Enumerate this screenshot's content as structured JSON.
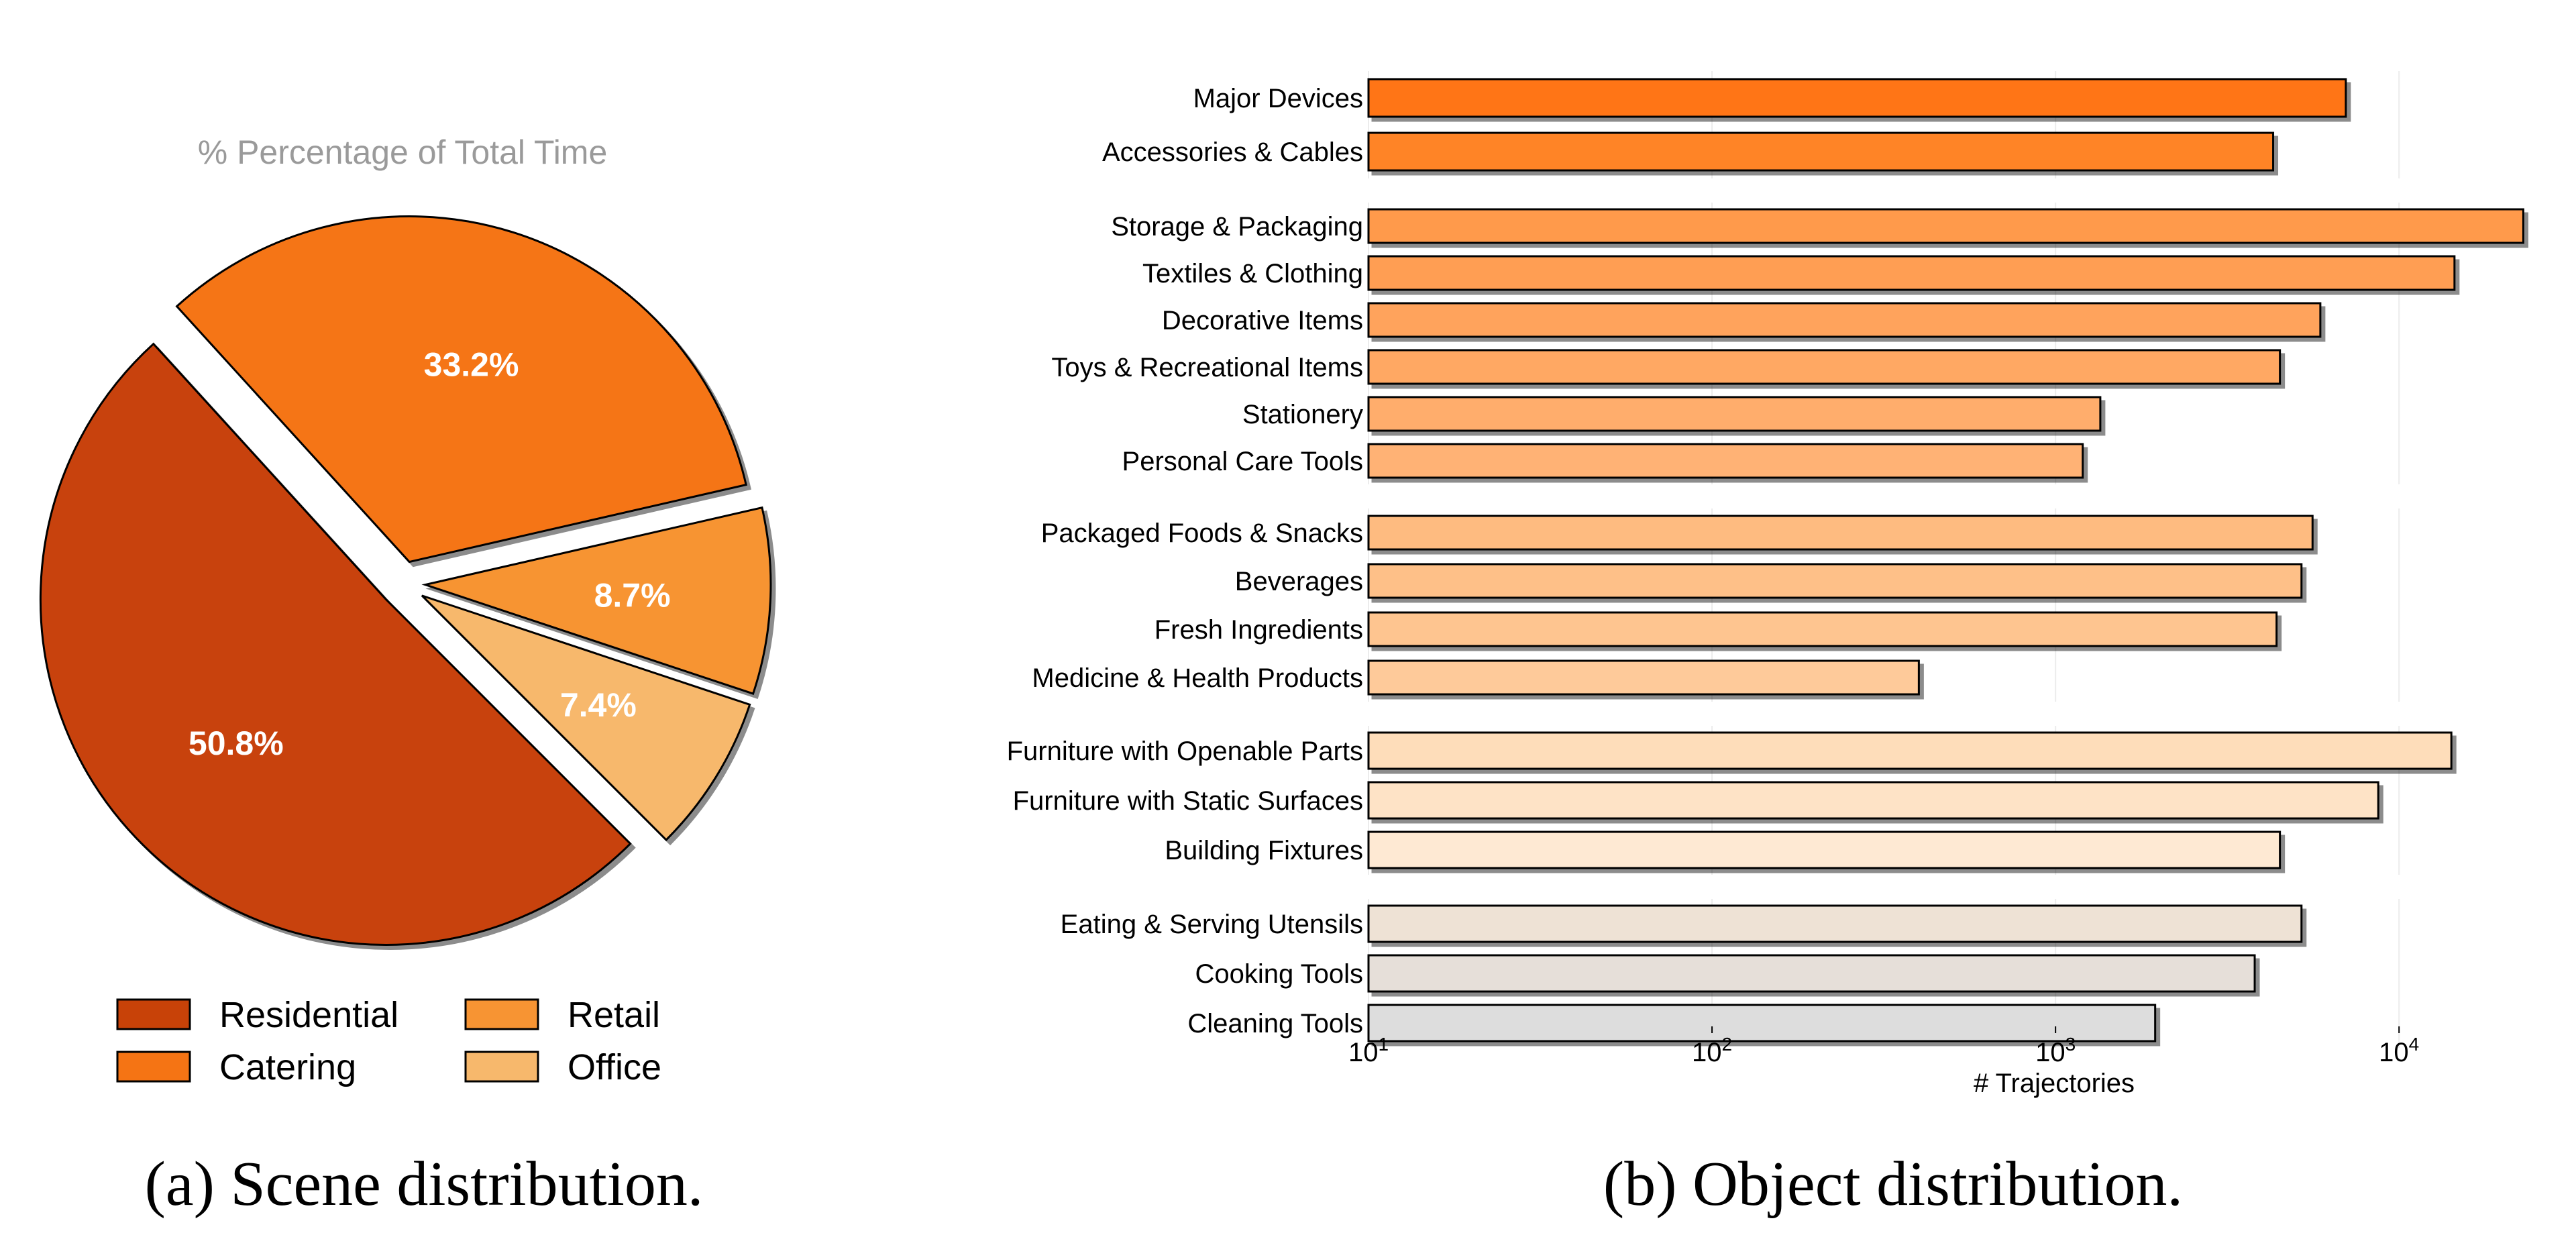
{
  "chart_data": [
    {
      "type": "pie",
      "title": "% Percentage of Total Time",
      "caption": "(a) Scene distribution.",
      "slices": [
        {
          "label": "Residential",
          "value": 50.8,
          "display": "50.8%",
          "color": "#C84208"
        },
        {
          "label": "Catering",
          "value": 33.2,
          "display": "33.2%",
          "color": "#F57414"
        },
        {
          "label": "Retail",
          "value": 8.7,
          "display": "8.7%",
          "color": "#F79433"
        },
        {
          "label": "Office",
          "value": 7.4,
          "display": "7.4%",
          "color": "#F7B86C"
        }
      ],
      "legend": {
        "position": "bottom",
        "columns": 2,
        "order": [
          "Residential",
          "Retail",
          "Catering",
          "Office"
        ]
      }
    },
    {
      "type": "bar",
      "orientation": "horizontal",
      "caption": "(b) Object distribution.",
      "xlabel": "# Trajectories",
      "xscale": "log",
      "xlim": [
        10,
        25000
      ],
      "xticks": [
        {
          "value": 10,
          "base": "10",
          "exp": "1"
        },
        {
          "value": 100,
          "base": "10",
          "exp": "2"
        },
        {
          "value": 1000,
          "base": "10",
          "exp": "3"
        },
        {
          "value": 10000,
          "base": "10",
          "exp": "4"
        }
      ],
      "grid": "vertical",
      "groups": [
        {
          "categories": [
            "Major Devices",
            "Accessories & Cables"
          ],
          "values": [
            7000,
            4300
          ],
          "colors": [
            "#FF7416",
            "#FF8427"
          ]
        },
        {
          "categories": [
            "Storage & Packaging",
            "Textiles & Clothing",
            "Decorative Items",
            "Toys & Recreational Items",
            "Stationery",
            "Personal Care Tools"
          ],
          "values": [
            23000,
            14500,
            5900,
            4500,
            1350,
            1200
          ],
          "colors": [
            "#FF9A4B",
            "#FF9E52",
            "#FFA35B",
            "#FFA864",
            "#FFAD6C",
            "#FFB275"
          ]
        },
        {
          "categories": [
            "Packaged Foods & Snacks",
            "Beverages",
            "Fresh Ingredients",
            "Medicine & Health Products"
          ],
          "values": [
            5600,
            5200,
            4400,
            400
          ],
          "colors": [
            "#FEBB80",
            "#FEC088",
            "#FEC590",
            "#FECA9A"
          ]
        },
        {
          "categories": [
            "Furniture with Openable Parts",
            "Furniture with Static Surfaces",
            "Building Fixtures"
          ],
          "values": [
            14200,
            8700,
            4500
          ],
          "colors": [
            "#FEDDBA",
            "#FEE3C6",
            "#FEE9D3"
          ]
        },
        {
          "categories": [
            "Eating & Serving Utensils",
            "Cooking Tools",
            "Cleaning Tools"
          ],
          "values": [
            5200,
            3800,
            1950
          ],
          "colors": [
            "#EEE2D5",
            "#E6DFD9",
            "#DDDDDD"
          ]
        }
      ]
    }
  ]
}
